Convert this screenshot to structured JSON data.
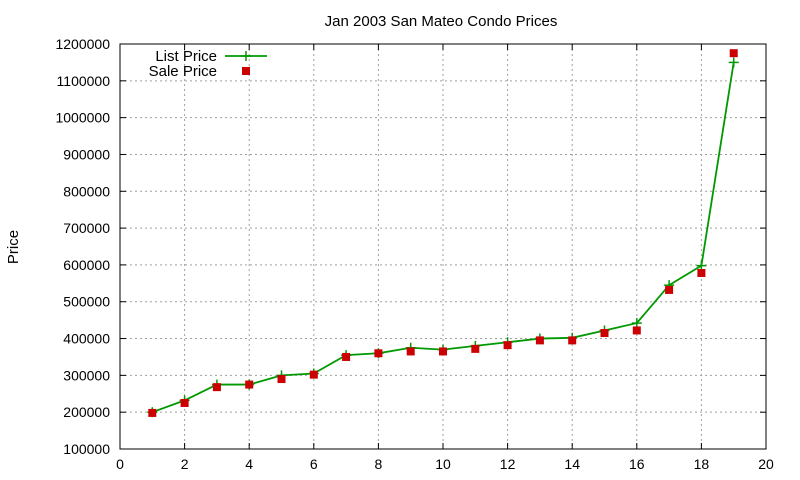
{
  "chart_data": {
    "type": "line",
    "title": "Jan 2003 San Mateo Condo Prices",
    "xlabel": "",
    "ylabel": "Price",
    "xlim": [
      0,
      20
    ],
    "ylim": [
      100000,
      1200000
    ],
    "x_ticks": [
      0,
      2,
      4,
      6,
      8,
      10,
      12,
      14,
      16,
      18,
      20
    ],
    "y_ticks": [
      100000,
      200000,
      300000,
      400000,
      500000,
      600000,
      700000,
      800000,
      900000,
      1000000,
      1100000,
      1200000
    ],
    "grid": true,
    "legend_position": "top-left",
    "series": [
      {
        "name": "List Price",
        "style": "line-with-plus-markers",
        "color": "#009900",
        "x": [
          1,
          2,
          3,
          4,
          5,
          6,
          7,
          8,
          9,
          10,
          11,
          12,
          13,
          14,
          15,
          16,
          17,
          18,
          19
        ],
        "values": [
          200000,
          232000,
          275000,
          275000,
          300000,
          305000,
          355000,
          360000,
          375000,
          370000,
          380000,
          390000,
          400000,
          402000,
          422000,
          442000,
          545000,
          598000,
          1150000
        ]
      },
      {
        "name": "Sale Price",
        "style": "square-markers",
        "color": "#cc0000",
        "x": [
          1,
          2,
          3,
          4,
          5,
          6,
          7,
          8,
          9,
          10,
          11,
          12,
          13,
          14,
          15,
          16,
          17,
          18,
          19
        ],
        "values": [
          198000,
          225000,
          268000,
          275000,
          290000,
          302000,
          350000,
          360000,
          365000,
          365000,
          372000,
          382000,
          395000,
          395000,
          415000,
          422000,
          532000,
          578000,
          1175000
        ]
      }
    ]
  }
}
